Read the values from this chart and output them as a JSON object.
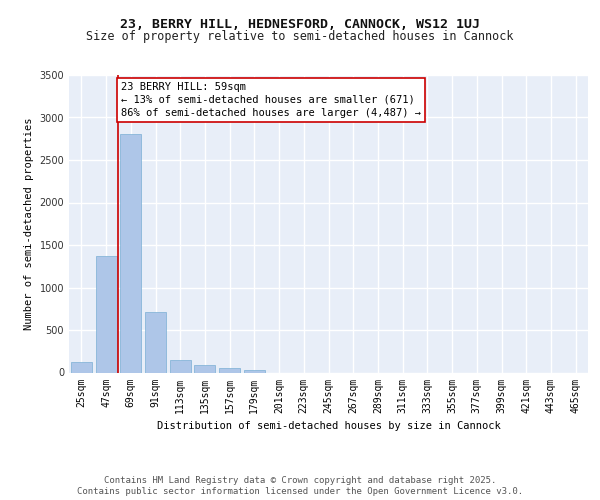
{
  "title_line1": "23, BERRY HILL, HEDNESFORD, CANNOCK, WS12 1UJ",
  "title_line2": "Size of property relative to semi-detached houses in Cannock",
  "xlabel": "Distribution of semi-detached houses by size in Cannock",
  "ylabel": "Number of semi-detached properties",
  "categories": [
    "25sqm",
    "47sqm",
    "69sqm",
    "91sqm",
    "113sqm",
    "135sqm",
    "157sqm",
    "179sqm",
    "201sqm",
    "223sqm",
    "245sqm",
    "267sqm",
    "289sqm",
    "311sqm",
    "333sqm",
    "355sqm",
    "377sqm",
    "399sqm",
    "421sqm",
    "443sqm",
    "465sqm"
  ],
  "values": [
    120,
    1370,
    2800,
    710,
    150,
    90,
    55,
    30,
    0,
    0,
    0,
    0,
    0,
    0,
    0,
    0,
    0,
    0,
    0,
    0,
    0
  ],
  "bar_color": "#aec6e8",
  "bar_edge_color": "#7aafd4",
  "vertical_line_x": 1.5,
  "vertical_line_color": "#cc0000",
  "annotation_text": "23 BERRY HILL: 59sqm\n← 13% of semi-detached houses are smaller (671)\n86% of semi-detached houses are larger (4,487) →",
  "annotation_box_color": "#cc0000",
  "ylim": [
    0,
    3500
  ],
  "yticks": [
    0,
    500,
    1000,
    1500,
    2000,
    2500,
    3000,
    3500
  ],
  "background_color": "#e8eef8",
  "grid_color": "#ffffff",
  "footer_line1": "Contains HM Land Registry data © Crown copyright and database right 2025.",
  "footer_line2": "Contains public sector information licensed under the Open Government Licence v3.0.",
  "title_fontsize": 9.5,
  "subtitle_fontsize": 8.5,
  "axis_label_fontsize": 7.5,
  "tick_fontsize": 7,
  "annotation_fontsize": 7.5,
  "footer_fontsize": 6.5
}
